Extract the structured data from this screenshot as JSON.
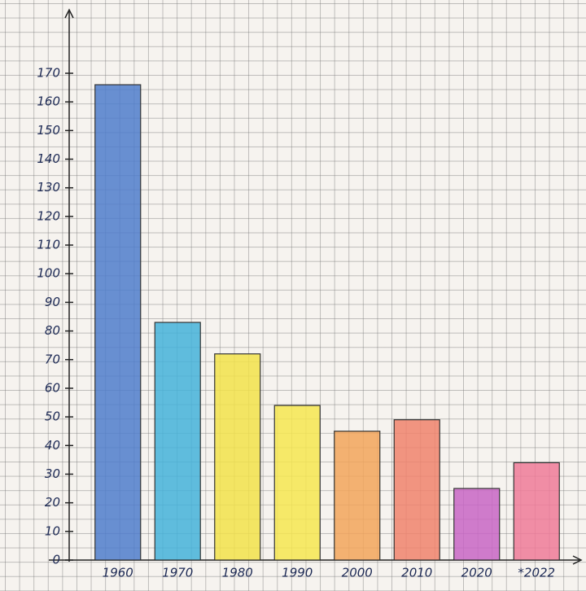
{
  "chart_data": {
    "type": "bar",
    "categories": [
      "1960",
      "1970",
      "1980",
      "1990",
      "2000",
      "2010",
      "2020",
      "*2022"
    ],
    "values": [
      166,
      83,
      72,
      54,
      45,
      49,
      25,
      34
    ],
    "colors": [
      "#4f7ccb",
      "#44b2d9",
      "#f2e24a",
      "#f6e650",
      "#f2a45a",
      "#f0836c",
      "#c865c4",
      "#ef7a98"
    ],
    "ylim": [
      0,
      170
    ],
    "yticks": [
      0,
      10,
      20,
      30,
      40,
      50,
      60,
      70,
      80,
      90,
      100,
      110,
      120,
      130,
      140,
      150,
      160,
      170
    ]
  }
}
